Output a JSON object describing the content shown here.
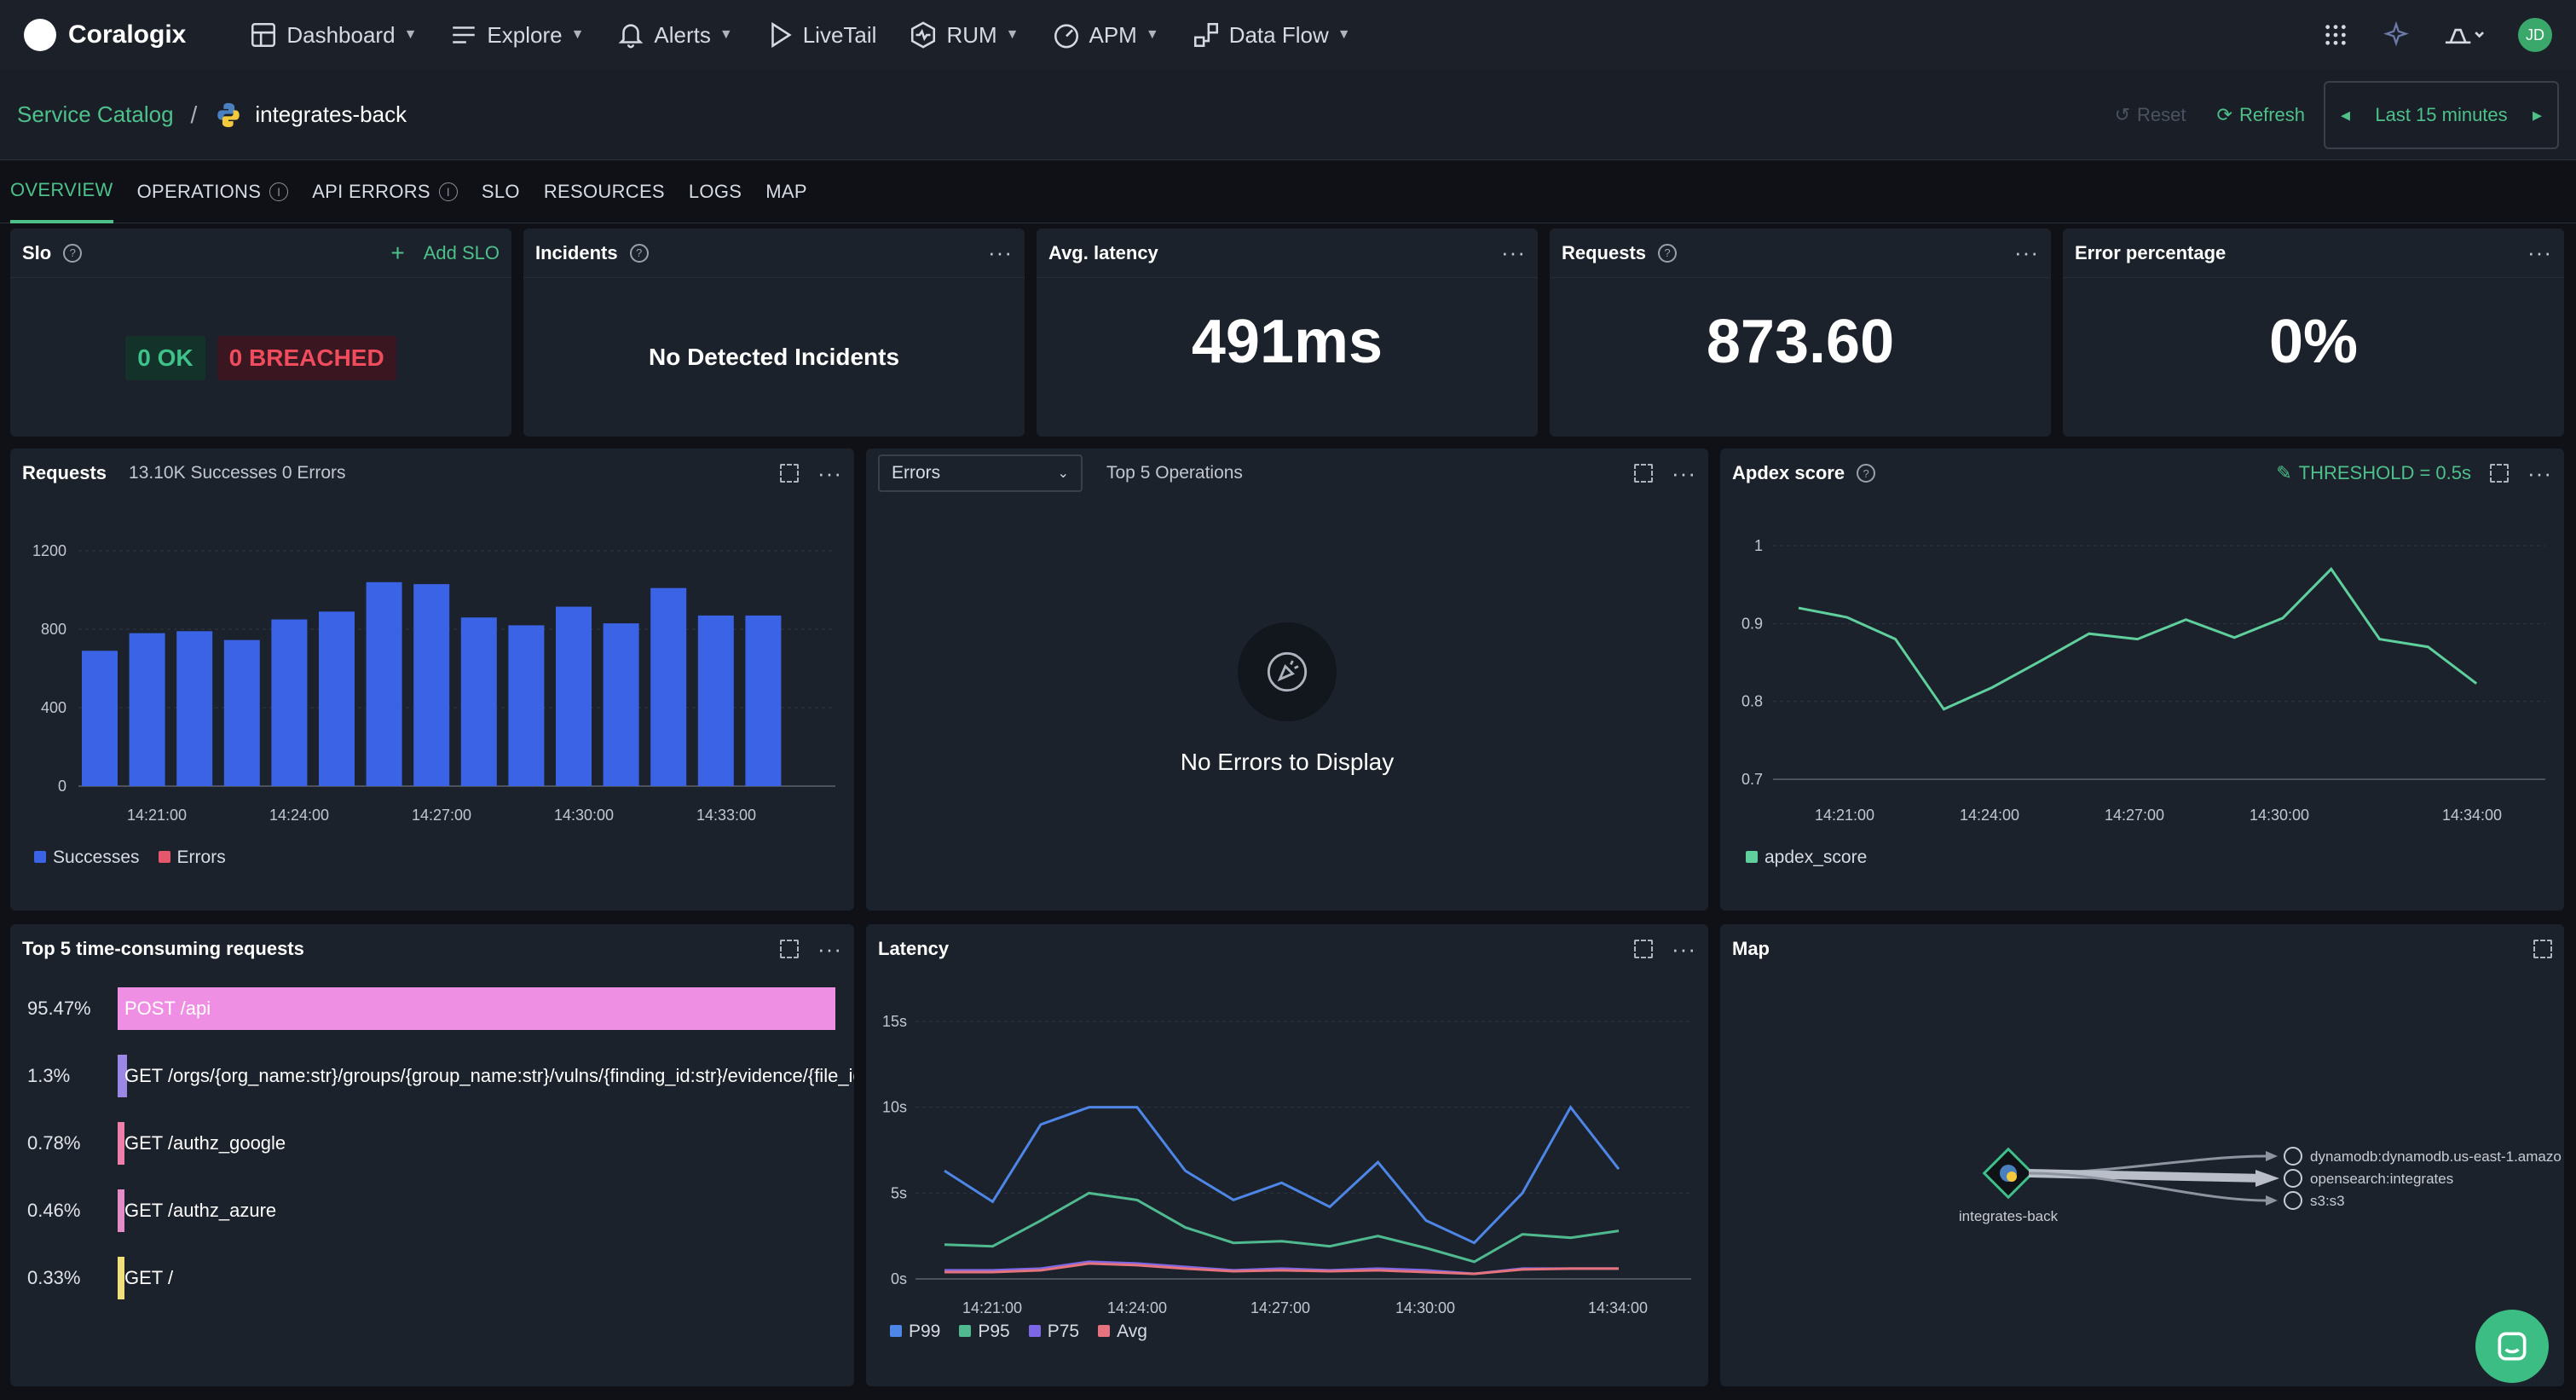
{
  "nav": {
    "brand": "Coralogix",
    "items": [
      {
        "label": "Dashboard",
        "icon": "dashboard-icon",
        "dropdown": true
      },
      {
        "label": "Explore",
        "icon": "explore-icon",
        "dropdown": true
      },
      {
        "label": "Alerts",
        "icon": "bell-icon",
        "dropdown": true
      },
      {
        "label": "LiveTail",
        "icon": "play-icon",
        "dropdown": false
      },
      {
        "label": "RUM",
        "icon": "rum-icon",
        "dropdown": true
      },
      {
        "label": "APM",
        "icon": "gauge-icon",
        "dropdown": true
      },
      {
        "label": "Data Flow",
        "icon": "flow-icon",
        "dropdown": true
      }
    ],
    "avatar_initials": "JD"
  },
  "breadcrumb": {
    "root": "Service Catalog",
    "separator": "/",
    "current": "integrates-back"
  },
  "toolbar": {
    "reset_label": "Reset",
    "refresh_label": "Refresh",
    "time_range": "Last 15 minutes"
  },
  "tabs": [
    {
      "label": "OVERVIEW",
      "active": true
    },
    {
      "label": "OPERATIONS",
      "info": true
    },
    {
      "label": "API ERRORS",
      "info": true
    },
    {
      "label": "SLO"
    },
    {
      "label": "RESOURCES"
    },
    {
      "label": "LOGS"
    },
    {
      "label": "MAP"
    }
  ],
  "kpis": {
    "slo": {
      "title": "Slo",
      "add_label": "Add SLO",
      "ok": "0 OK",
      "breached": "0 BREACHED"
    },
    "incidents": {
      "title": "Incidents",
      "text": "No Detected Incidents"
    },
    "latency": {
      "title": "Avg. latency",
      "value": "491ms"
    },
    "requests": {
      "title": "Requests",
      "value": "873.60"
    },
    "error_pct": {
      "title": "Error percentage",
      "value": "0%"
    }
  },
  "requests_panel": {
    "title": "Requests",
    "summary": "13.10K Successes 0 Errors",
    "legend": [
      "Successes",
      "Errors"
    ]
  },
  "errors_panel": {
    "select_value": "Errors",
    "subtitle": "Top 5 Operations",
    "empty_text": "No Errors to Display"
  },
  "apdex_panel": {
    "title": "Apdex score",
    "threshold": "THRESHOLD = 0.5s",
    "legend": "apdex_score"
  },
  "top5_panel": {
    "title": "Top 5 time-consuming requests",
    "rows": [
      {
        "pct": "95.47%",
        "label": "POST /api",
        "value": 95.47,
        "color": "#ee8fe4"
      },
      {
        "pct": "1.3%",
        "label": "GET /orgs/{org_name:str}/groups/{group_name:str}/vulns/{finding_id:str}/evidence/{file_id",
        "value": 1.3,
        "color": "#9a87e6"
      },
      {
        "pct": "0.78%",
        "label": "GET /authz_google",
        "value": 0.78,
        "color": "#ee7fa8"
      },
      {
        "pct": "0.46%",
        "label": "GET /authz_azure",
        "value": 0.46,
        "color": "#e58cc8"
      },
      {
        "pct": "0.33%",
        "label": "GET /",
        "value": 0.33,
        "color": "#f0df7a"
      }
    ]
  },
  "latency_panel": {
    "title": "Latency",
    "legend": [
      "P99",
      "P95",
      "P75",
      "Avg"
    ]
  },
  "map_panel": {
    "title": "Map",
    "service": "integrates-back",
    "targets": [
      "dynamodb:dynamodb.us-east-1.amazo",
      "opensearch:integrates",
      "s3:s3"
    ]
  },
  "colors": {
    "accent": "#4ec08a",
    "successes": "#3b63e6",
    "errors": "#e4576d",
    "apdex": "#5ecf9d",
    "p99": "#4e86e8",
    "p95": "#4fb98f",
    "p75": "#7c68e6",
    "avg": "#e5737d"
  },
  "chart_data": [
    {
      "type": "bar",
      "title": "Requests",
      "categories": [
        "14:20",
        "14:21",
        "14:22",
        "14:23",
        "14:24",
        "14:25",
        "14:26",
        "14:27",
        "14:28",
        "14:29",
        "14:30",
        "14:31",
        "14:32",
        "14:33",
        "14:34"
      ],
      "x_tick_labels": [
        "14:21:00",
        "14:24:00",
        "14:27:00",
        "14:30:00",
        "14:33:00"
      ],
      "y_tick_labels": [
        "0",
        "400",
        "800",
        "1200"
      ],
      "series": [
        {
          "name": "Successes",
          "values": [
            690,
            780,
            790,
            745,
            850,
            890,
            1040,
            1030,
            860,
            820,
            915,
            830,
            1010,
            870,
            870
          ]
        },
        {
          "name": "Errors",
          "values": [
            0,
            0,
            0,
            0,
            0,
            0,
            0,
            0,
            0,
            0,
            0,
            0,
            0,
            0,
            0
          ]
        }
      ],
      "ylim": [
        0,
        1200
      ]
    },
    {
      "type": "line",
      "title": "Apdex score",
      "x_tick_labels": [
        "14:21:00",
        "14:24:00",
        "14:27:00",
        "14:30:00",
        "14:34:00"
      ],
      "y_tick_labels": [
        "0.7",
        "0.8",
        "0.9",
        "1"
      ],
      "series": [
        {
          "name": "apdex_score",
          "values": [
            0.92,
            0.908,
            0.88,
            0.79,
            0.818,
            0.852,
            0.887,
            0.88,
            0.905,
            0.882,
            0.907,
            0.97,
            0.88,
            0.87,
            0.823
          ]
        }
      ],
      "ylim": [
        0.7,
        1.0
      ]
    },
    {
      "type": "line",
      "title": "Latency",
      "x_tick_labels": [
        "14:21:00",
        "14:24:00",
        "14:27:00",
        "14:30:00",
        "14:34:00"
      ],
      "y_tick_labels": [
        "0s",
        "5s",
        "10s",
        "15s"
      ],
      "series": [
        {
          "name": "P99",
          "values": [
            6.3,
            4.5,
            9.0,
            10.0,
            10.0,
            6.3,
            4.6,
            5.6,
            4.2,
            6.8,
            3.4,
            2.1,
            5.0,
            10.0,
            6.4
          ]
        },
        {
          "name": "P95",
          "values": [
            2.0,
            1.9,
            3.4,
            5.0,
            4.6,
            3.0,
            2.1,
            2.2,
            1.9,
            2.5,
            1.8,
            1.0,
            2.6,
            2.4,
            2.8
          ]
        },
        {
          "name": "P75",
          "values": [
            0.5,
            0.5,
            0.6,
            1.0,
            0.9,
            0.7,
            0.5,
            0.6,
            0.5,
            0.6,
            0.5,
            0.3,
            0.6,
            0.6,
            0.6
          ]
        },
        {
          "name": "Avg",
          "values": [
            0.4,
            0.4,
            0.5,
            0.9,
            0.8,
            0.6,
            0.45,
            0.5,
            0.45,
            0.5,
            0.4,
            0.3,
            0.55,
            0.6,
            0.6
          ]
        }
      ],
      "ylim": [
        0,
        15
      ]
    }
  ]
}
